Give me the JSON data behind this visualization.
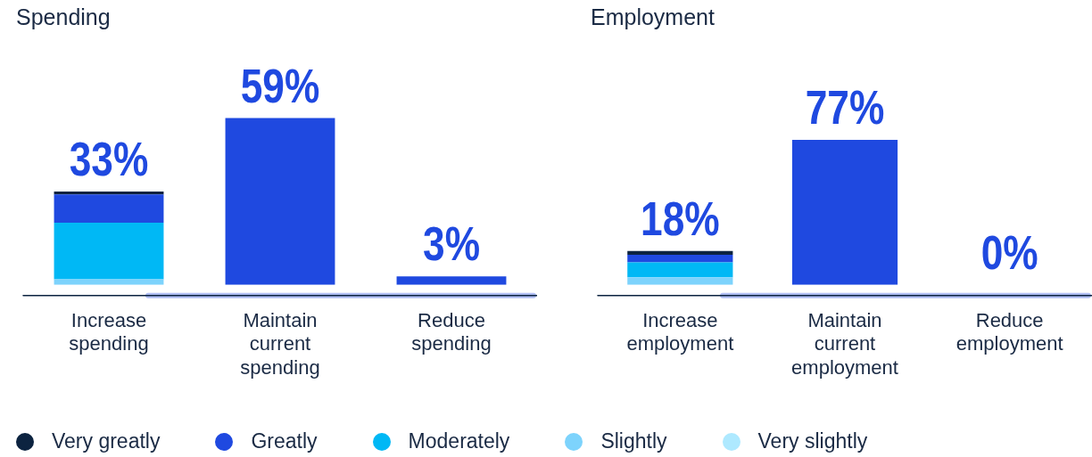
{
  "chart_data": [
    {
      "type": "bar",
      "title": "Spending",
      "categories": [
        "Increase spending",
        "Maintain current spending",
        "Reduce spending"
      ],
      "stacked": true,
      "tick_labels": "x",
      "grid": false,
      "legend": "bottom",
      "totals": [
        "33%",
        null,
        null
      ],
      "series": [
        {
          "name": "Very slightly",
          "color": "#aee9ff",
          "values": [
            0,
            null,
            null
          ]
        },
        {
          "name": "Slightly",
          "color": "#7dd3fc",
          "values": [
            2,
            null,
            null
          ]
        },
        {
          "name": "Moderately",
          "color": "#00b8f5",
          "values": [
            20,
            null,
            null
          ]
        },
        {
          "name": "Greatly",
          "color": "#1f49e0",
          "values": [
            10,
            null,
            null
          ]
        },
        {
          "name": "Very greatly",
          "color": "#0c2340",
          "values": [
            1,
            null,
            null
          ]
        },
        {
          "color": "#1f49e0",
          "values": [
            null,
            59,
            3
          ],
          "value_labels": [
            null,
            "59%",
            "3%"
          ]
        }
      ]
    },
    {
      "type": "bar",
      "title": "Employment",
      "categories": [
        "Increase employment",
        "Maintain current employment",
        "Reduce employment"
      ],
      "stacked": true,
      "tick_labels": "x",
      "grid": false,
      "totals": [
        "18%",
        null,
        null
      ],
      "series": [
        {
          "color": "#aee9ff",
          "values": [
            0,
            null,
            null
          ]
        },
        {
          "color": "#7dd3fc",
          "values": [
            4,
            null,
            null
          ]
        },
        {
          "color": "#00b8f5",
          "values": [
            8,
            null,
            null
          ]
        },
        {
          "color": "#1f49e0",
          "values": [
            4,
            null,
            null
          ]
        },
        {
          "color": "#0c2340",
          "values": [
            2,
            null,
            null
          ]
        },
        {
          "color": "#1f49e0",
          "values": [
            null,
            77,
            0
          ],
          "value_labels": [
            null,
            "77%",
            "0%"
          ]
        }
      ]
    }
  ]
}
